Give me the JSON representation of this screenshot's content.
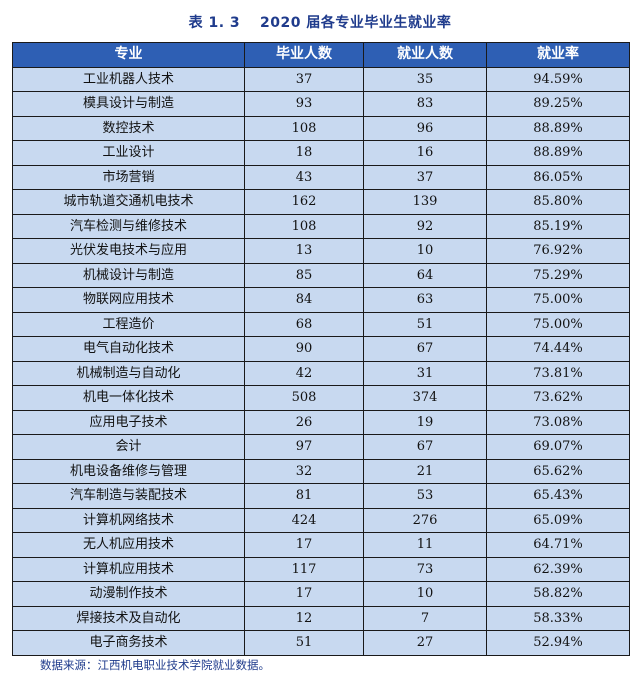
{
  "title": "表 1. 3　 2020 届各专业毕业生就业率",
  "headers": [
    "专业",
    "毕业人数",
    "就业人数",
    "就业率"
  ],
  "rows": [
    [
      "工业机器人技术",
      "37",
      "35",
      "94.59%"
    ],
    [
      "模具设计与制造",
      "93",
      "83",
      "89.25%"
    ],
    [
      "数控技术",
      "108",
      "96",
      "88.89%"
    ],
    [
      "工业设计",
      "18",
      "16",
      "88.89%"
    ],
    [
      "市场营销",
      "43",
      "37",
      "86.05%"
    ],
    [
      "城市轨道交通机电技术",
      "162",
      "139",
      "85.80%"
    ],
    [
      "汽车检测与维修技术",
      "108",
      "92",
      "85.19%"
    ],
    [
      "光伏发电技术与应用",
      "13",
      "10",
      "76.92%"
    ],
    [
      "机械设计与制造",
      "85",
      "64",
      "75.29%"
    ],
    [
      "物联网应用技术",
      "84",
      "63",
      "75.00%"
    ],
    [
      "工程造价",
      "68",
      "51",
      "75.00%"
    ],
    [
      "电气自动化技术",
      "90",
      "67",
      "74.44%"
    ],
    [
      "机械制造与自动化",
      "42",
      "31",
      "73.81%"
    ],
    [
      "机电一体化技术",
      "508",
      "374",
      "73.62%"
    ],
    [
      "应用电子技术",
      "26",
      "19",
      "73.08%"
    ],
    [
      "会计",
      "97",
      "67",
      "69.07%"
    ],
    [
      "机电设备维修与管理",
      "32",
      "21",
      "65.62%"
    ],
    [
      "汽车制造与装配技术",
      "81",
      "53",
      "65.43%"
    ],
    [
      "计算机网络技术",
      "424",
      "276",
      "65.09%"
    ],
    [
      "无人机应用技术",
      "17",
      "11",
      "64.71%"
    ],
    [
      "计算机应用技术",
      "117",
      "73",
      "62.39%"
    ],
    [
      "动漫制作技术",
      "17",
      "10",
      "58.82%"
    ],
    [
      "焊接技术及自动化",
      "12",
      "7",
      "58.33%"
    ],
    [
      "电子商务技术",
      "51",
      "27",
      "52.94%"
    ]
  ],
  "source": "数据来源：江西机电职业技术学院就业数据。",
  "colors": {
    "header_bg": "#2e5fb4",
    "row_bg": "#c8d9f0",
    "title": "#1f3b8c"
  }
}
